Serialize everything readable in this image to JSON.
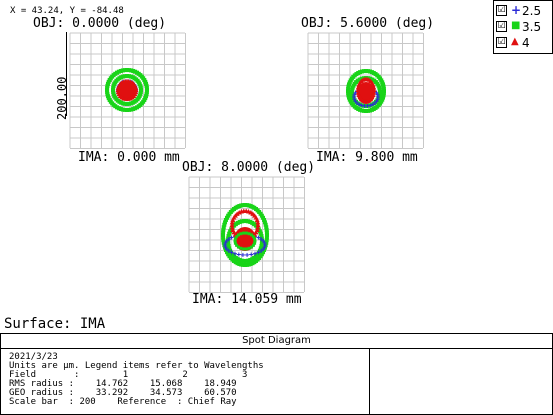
{
  "cursor_readout": "X = 43.24, Y = -84.48",
  "legend": {
    "items": [
      {
        "symbol": "+",
        "label": "2.5",
        "color": "#2b2bd6",
        "checked": "☑"
      },
      {
        "symbol": "■",
        "label": "3.5",
        "color": "#18d418",
        "checked": "☑"
      },
      {
        "symbol": "▲",
        "label": "4",
        "color": "#e01010",
        "checked": "☑"
      }
    ]
  },
  "fields": [
    {
      "title": "OBJ: 0.0000 (deg)",
      "ima": "IMA: 0.000 mm"
    },
    {
      "title": "OBJ: 5.6000 (deg)",
      "ima": "IMA: 9.800 mm"
    },
    {
      "title": "OBJ: 8.0000 (deg)",
      "ima": "IMA: 14.059 mm"
    }
  ],
  "scale_bar_label": "200.00",
  "surface": "Surface: IMA",
  "info": {
    "title": "Spot Diagram",
    "date": "2021/3/23",
    "units_line": "Units are µm. Legend items refer to Wavelengths",
    "field_line": "Field       :        1          2          3",
    "rms_line": "RMS radius :    14.762    15.068    18.949",
    "geo_line": "GEO radius :    33.292    34.573    60.570",
    "scale_line": "Scale bar  : 200    Reference  : Chief Ray"
  },
  "colors": {
    "wave1": "#2b2bd6",
    "wave2": "#18d418",
    "wave3": "#e01010",
    "grid": "#c8c8c8"
  }
}
